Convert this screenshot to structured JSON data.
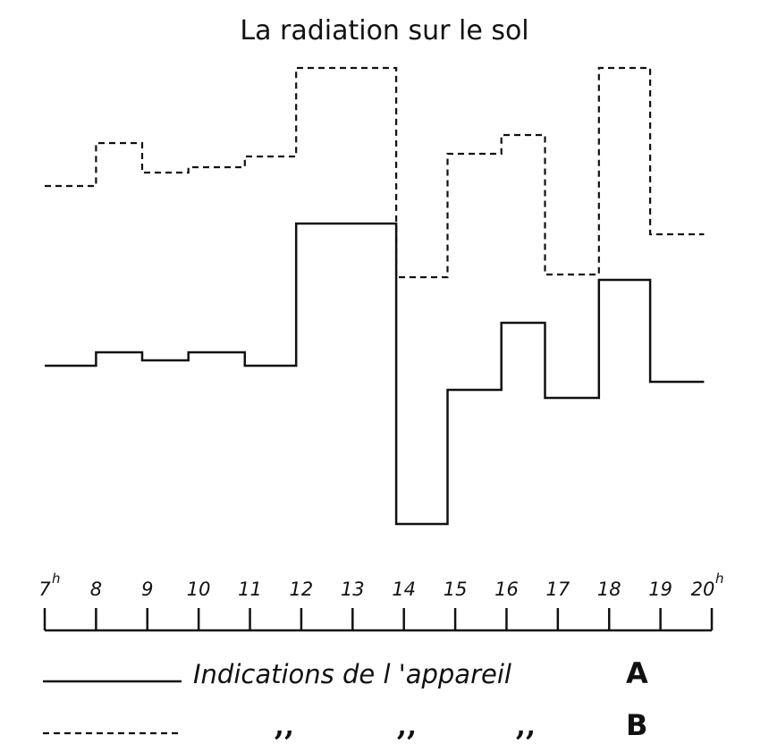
{
  "chart_data": {
    "type": "line",
    "step": true,
    "title": "La radiation sur le sol",
    "xlabel": "",
    "ylabel": "",
    "x_ticks": [
      "7",
      "8",
      "9",
      "10",
      "11",
      "12",
      "13",
      "14",
      "15",
      "16",
      "17",
      "18",
      "19",
      "20"
    ],
    "x_tick_superscripts": {
      "first": "h",
      "last": "h"
    },
    "xlim": [
      7,
      20
    ],
    "y_axis_shown": false,
    "grid": false,
    "series": [
      {
        "name": "Indications de l'appareil A",
        "style": "solid",
        "color": "#111111",
        "steps": [
          {
            "x0": 7,
            "x1": 8,
            "y": 2.9
          },
          {
            "x0": 8,
            "x1": 8.9,
            "y": 3.4
          },
          {
            "x0": 8.9,
            "x1": 9.8,
            "y": 3.1
          },
          {
            "x0": 9.8,
            "x1": 10.9,
            "y": 3.4
          },
          {
            "x0": 10.9,
            "x1": 11.9,
            "y": 2.9
          },
          {
            "x0": 11.9,
            "x1": 13.85,
            "y": 8.2
          },
          {
            "x0": 13.85,
            "x1": 14.85,
            "y": -3.0
          },
          {
            "x0": 14.85,
            "x1": 15.9,
            "y": 2.0
          },
          {
            "x0": 15.9,
            "x1": 16.75,
            "y": 4.5
          },
          {
            "x0": 16.75,
            "x1": 17.8,
            "y": 1.7
          },
          {
            "x0": 17.8,
            "x1": 18.8,
            "y": 6.1
          },
          {
            "x0": 18.8,
            "x1": 19.85,
            "y": 2.3
          }
        ]
      },
      {
        "name": "B",
        "style": "dashed",
        "color": "#111111",
        "steps": [
          {
            "x0": 7,
            "x1": 8,
            "y": 9.6
          },
          {
            "x0": 8,
            "x1": 8.9,
            "y": 11.2
          },
          {
            "x0": 8.9,
            "x1": 9.8,
            "y": 10.1
          },
          {
            "x0": 9.8,
            "x1": 10.9,
            "y": 10.3
          },
          {
            "x0": 10.9,
            "x1": 11.9,
            "y": 10.7
          },
          {
            "x0": 11.9,
            "x1": 13.85,
            "y": 14.0
          },
          {
            "x0": 13.85,
            "x1": 14.85,
            "y": 6.2
          },
          {
            "x0": 14.85,
            "x1": 15.9,
            "y": 10.8
          },
          {
            "x0": 15.9,
            "x1": 16.75,
            "y": 11.5
          },
          {
            "x0": 16.75,
            "x1": 17.8,
            "y": 6.3
          },
          {
            "x0": 17.8,
            "x1": 18.8,
            "y": 14.0
          },
          {
            "x0": 18.8,
            "x1": 19.85,
            "y": 7.8
          }
        ]
      }
    ],
    "legend": {
      "placement": "bottom",
      "entries": [
        {
          "style": "solid",
          "text": "Indications de l 'appareil",
          "letter": "A"
        },
        {
          "style": "dashed",
          "ditto": [
            ",,",
            ",,",
            ",,"
          ],
          "letter": "B"
        }
      ]
    }
  }
}
